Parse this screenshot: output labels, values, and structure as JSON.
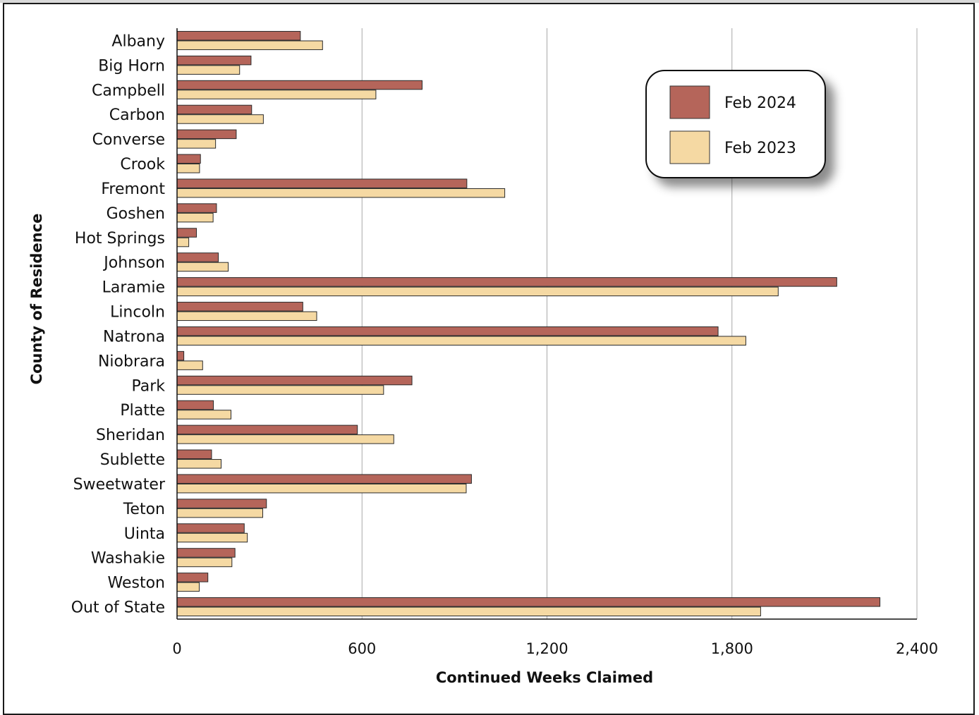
{
  "chart_data": {
    "type": "bar",
    "orientation": "horizontal",
    "title": "",
    "xlabel": "Continued Weeks Claimed",
    "ylabel": "County of Residence",
    "xlim": [
      0,
      2400
    ],
    "xticks": [
      0,
      600,
      1200,
      1800,
      2400
    ],
    "xtick_labels": [
      "0",
      "600",
      "1,200",
      "1,800",
      "2,400"
    ],
    "grid": "vertical",
    "legend_position": "top-right",
    "categories": [
      "Albany",
      "Big Horn",
      "Campbell",
      "Carbon",
      "Converse",
      "Crook",
      "Fremont",
      "Goshen",
      "Hot Springs",
      "Johnson",
      "Laramie",
      "Lincoln",
      "Natrona",
      "Niobrara",
      "Park",
      "Platte",
      "Sheridan",
      "Sublette",
      "Sweetwater",
      "Teton",
      "Uinta",
      "Washakie",
      "Weston",
      "Out of State"
    ],
    "series": [
      {
        "name": "Feb 2024",
        "color": "#b5655a",
        "values": [
          400,
          240,
          795,
          242,
          192,
          76,
          940,
          128,
          63,
          134,
          2140,
          408,
          1755,
          22,
          762,
          118,
          585,
          112,
          955,
          290,
          218,
          188,
          100,
          2280
        ]
      },
      {
        "name": "Feb 2023",
        "color": "#f5d9a3",
        "values": [
          472,
          203,
          645,
          280,
          125,
          73,
          1063,
          117,
          38,
          166,
          1950,
          453,
          1845,
          83,
          670,
          175,
          703,
          143,
          938,
          278,
          228,
          178,
          72,
          1893
        ]
      }
    ]
  }
}
